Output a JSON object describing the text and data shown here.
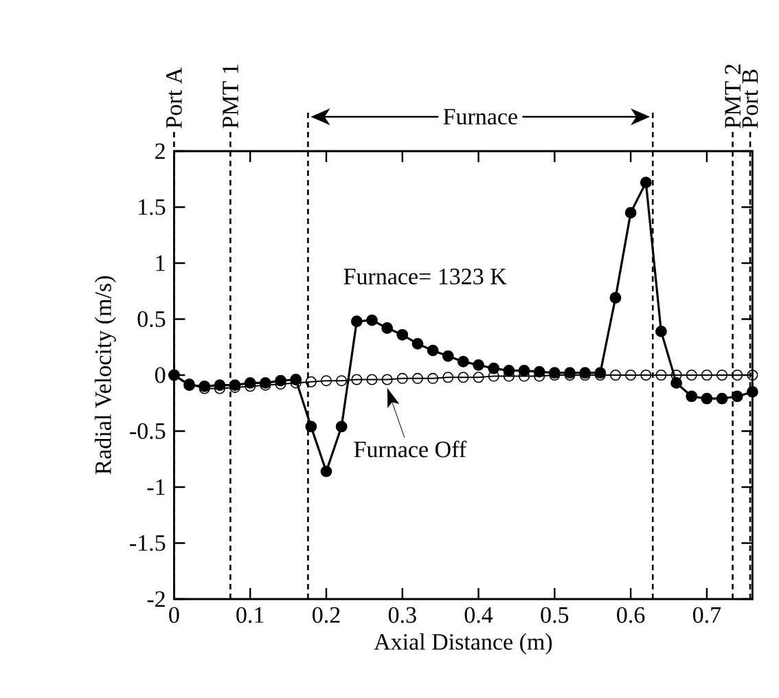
{
  "chart_data": {
    "type": "line",
    "xlabel": "Axial Distance (m)",
    "ylabel": "Radial Velocity (m/s)",
    "xlim": [
      0,
      0.76
    ],
    "ylim": [
      -2,
      2
    ],
    "xticks": [
      0,
      0.1,
      0.2,
      0.3,
      0.4,
      0.5,
      0.6,
      0.7
    ],
    "yticks": [
      -2,
      -1.5,
      -1,
      -0.5,
      0,
      0.5,
      1,
      1.5,
      2
    ],
    "marker": "circle",
    "line_style": "solid",
    "grid": false,
    "x": [
      0,
      0.02,
      0.04,
      0.06,
      0.08,
      0.1,
      0.12,
      0.14,
      0.16,
      0.18,
      0.2,
      0.22,
      0.24,
      0.26,
      0.28,
      0.3,
      0.32,
      0.34,
      0.36,
      0.38,
      0.4,
      0.42,
      0.44,
      0.46,
      0.48,
      0.5,
      0.52,
      0.54,
      0.56,
      0.58,
      0.6,
      0.62,
      0.64,
      0.66,
      0.68,
      0.7,
      0.72,
      0.74,
      0.76
    ],
    "series": [
      {
        "color": "#000000",
        "values": [
          0.0,
          -0.09,
          -0.1,
          -0.09,
          -0.09,
          -0.07,
          -0.07,
          -0.05,
          -0.04,
          -0.46,
          -0.86,
          -0.46,
          0.48,
          0.49,
          0.42,
          0.36,
          0.28,
          0.22,
          0.17,
          0.12,
          0.09,
          0.06,
          0.04,
          0.04,
          0.03,
          0.02,
          0.02,
          0.02,
          0.02,
          0.69,
          1.45,
          1.72,
          0.39,
          -0.07,
          -0.19,
          -0.21,
          -0.21,
          -0.19,
          -0.15
        ]
      },
      {
        "color": "#000000",
        "values": [
          0.0,
          -0.08,
          -0.12,
          -0.12,
          -0.11,
          -0.1,
          -0.09,
          -0.08,
          -0.07,
          -0.06,
          -0.05,
          -0.05,
          -0.04,
          -0.04,
          -0.04,
          -0.03,
          -0.03,
          -0.03,
          -0.02,
          -0.02,
          -0.02,
          -0.01,
          -0.01,
          -0.01,
          -0.01,
          0.0,
          0.0,
          0.0,
          0.0,
          0.0,
          0.0,
          0.0,
          0.0,
          0.0,
          0.0,
          0.0,
          0.0,
          0.0,
          0.0
        ]
      }
    ],
    "ref_lines": [
      {
        "axis": "x",
        "value": 0,
        "label": "Port A",
        "line_style": "dashed"
      },
      {
        "axis": "x",
        "value": 0.074,
        "label": "PMT 1",
        "line_style": "dashed"
      },
      {
        "axis": "x",
        "value": 0.734,
        "label": "PMT 2",
        "line_style": "dashed"
      },
      {
        "axis": "x",
        "value": 0.757,
        "label": "Port B",
        "line_style": "dashed"
      },
      {
        "axis": "x",
        "value": 0.176,
        "line_style": "dashed"
      },
      {
        "axis": "x",
        "value": 0.629,
        "line_style": "dashed"
      }
    ],
    "annotations": [
      "Furnace",
      "Furnace= 1323 K",
      {
        "text": "Furnace Off",
        "x": 0.28,
        "y": -0.04
      }
    ]
  }
}
